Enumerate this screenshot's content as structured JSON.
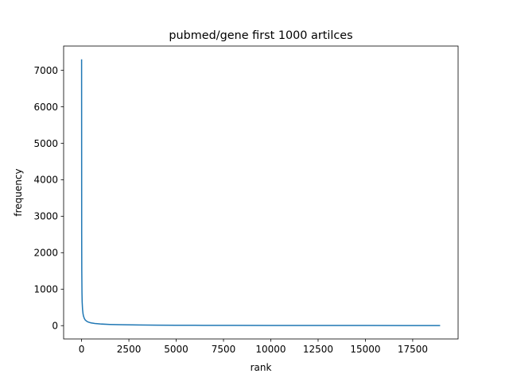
{
  "chart_data": {
    "type": "line",
    "title": "pubmed/gene first 1000 artilces",
    "xlabel": "rank",
    "ylabel": "frequency",
    "xlim": [
      -950,
      19900
    ],
    "ylim": [
      -365,
      7665
    ],
    "xticks": [
      0,
      2500,
      5000,
      7500,
      10000,
      12500,
      15000,
      17500
    ],
    "xtick_labels": [
      "0",
      "2500",
      "5000",
      "7500",
      "10000",
      "12500",
      "15000",
      "17500"
    ],
    "yticks": [
      0,
      1000,
      2000,
      3000,
      4000,
      5000,
      6000,
      7000
    ],
    "ytick_labels": [
      "0",
      "1000",
      "2000",
      "3000",
      "4000",
      "5000",
      "6000",
      "7000"
    ],
    "grid": false,
    "line_color": "#1f77b4",
    "series": [
      {
        "x": [
          0,
          5,
          10,
          20,
          30,
          50,
          75,
          100,
          150,
          200,
          300,
          400,
          500,
          700,
          1000,
          1500,
          2000,
          3000,
          4000,
          5000,
          6000,
          8000,
          10000,
          12500,
          15000,
          17500,
          18950
        ],
        "values": [
          7300,
          2500,
          1500,
          900,
          650,
          450,
          330,
          260,
          190,
          150,
          110,
          90,
          75,
          60,
          45,
          33,
          26,
          18,
          14,
          11,
          9,
          7,
          6,
          5,
          4,
          3,
          3
        ]
      }
    ]
  }
}
